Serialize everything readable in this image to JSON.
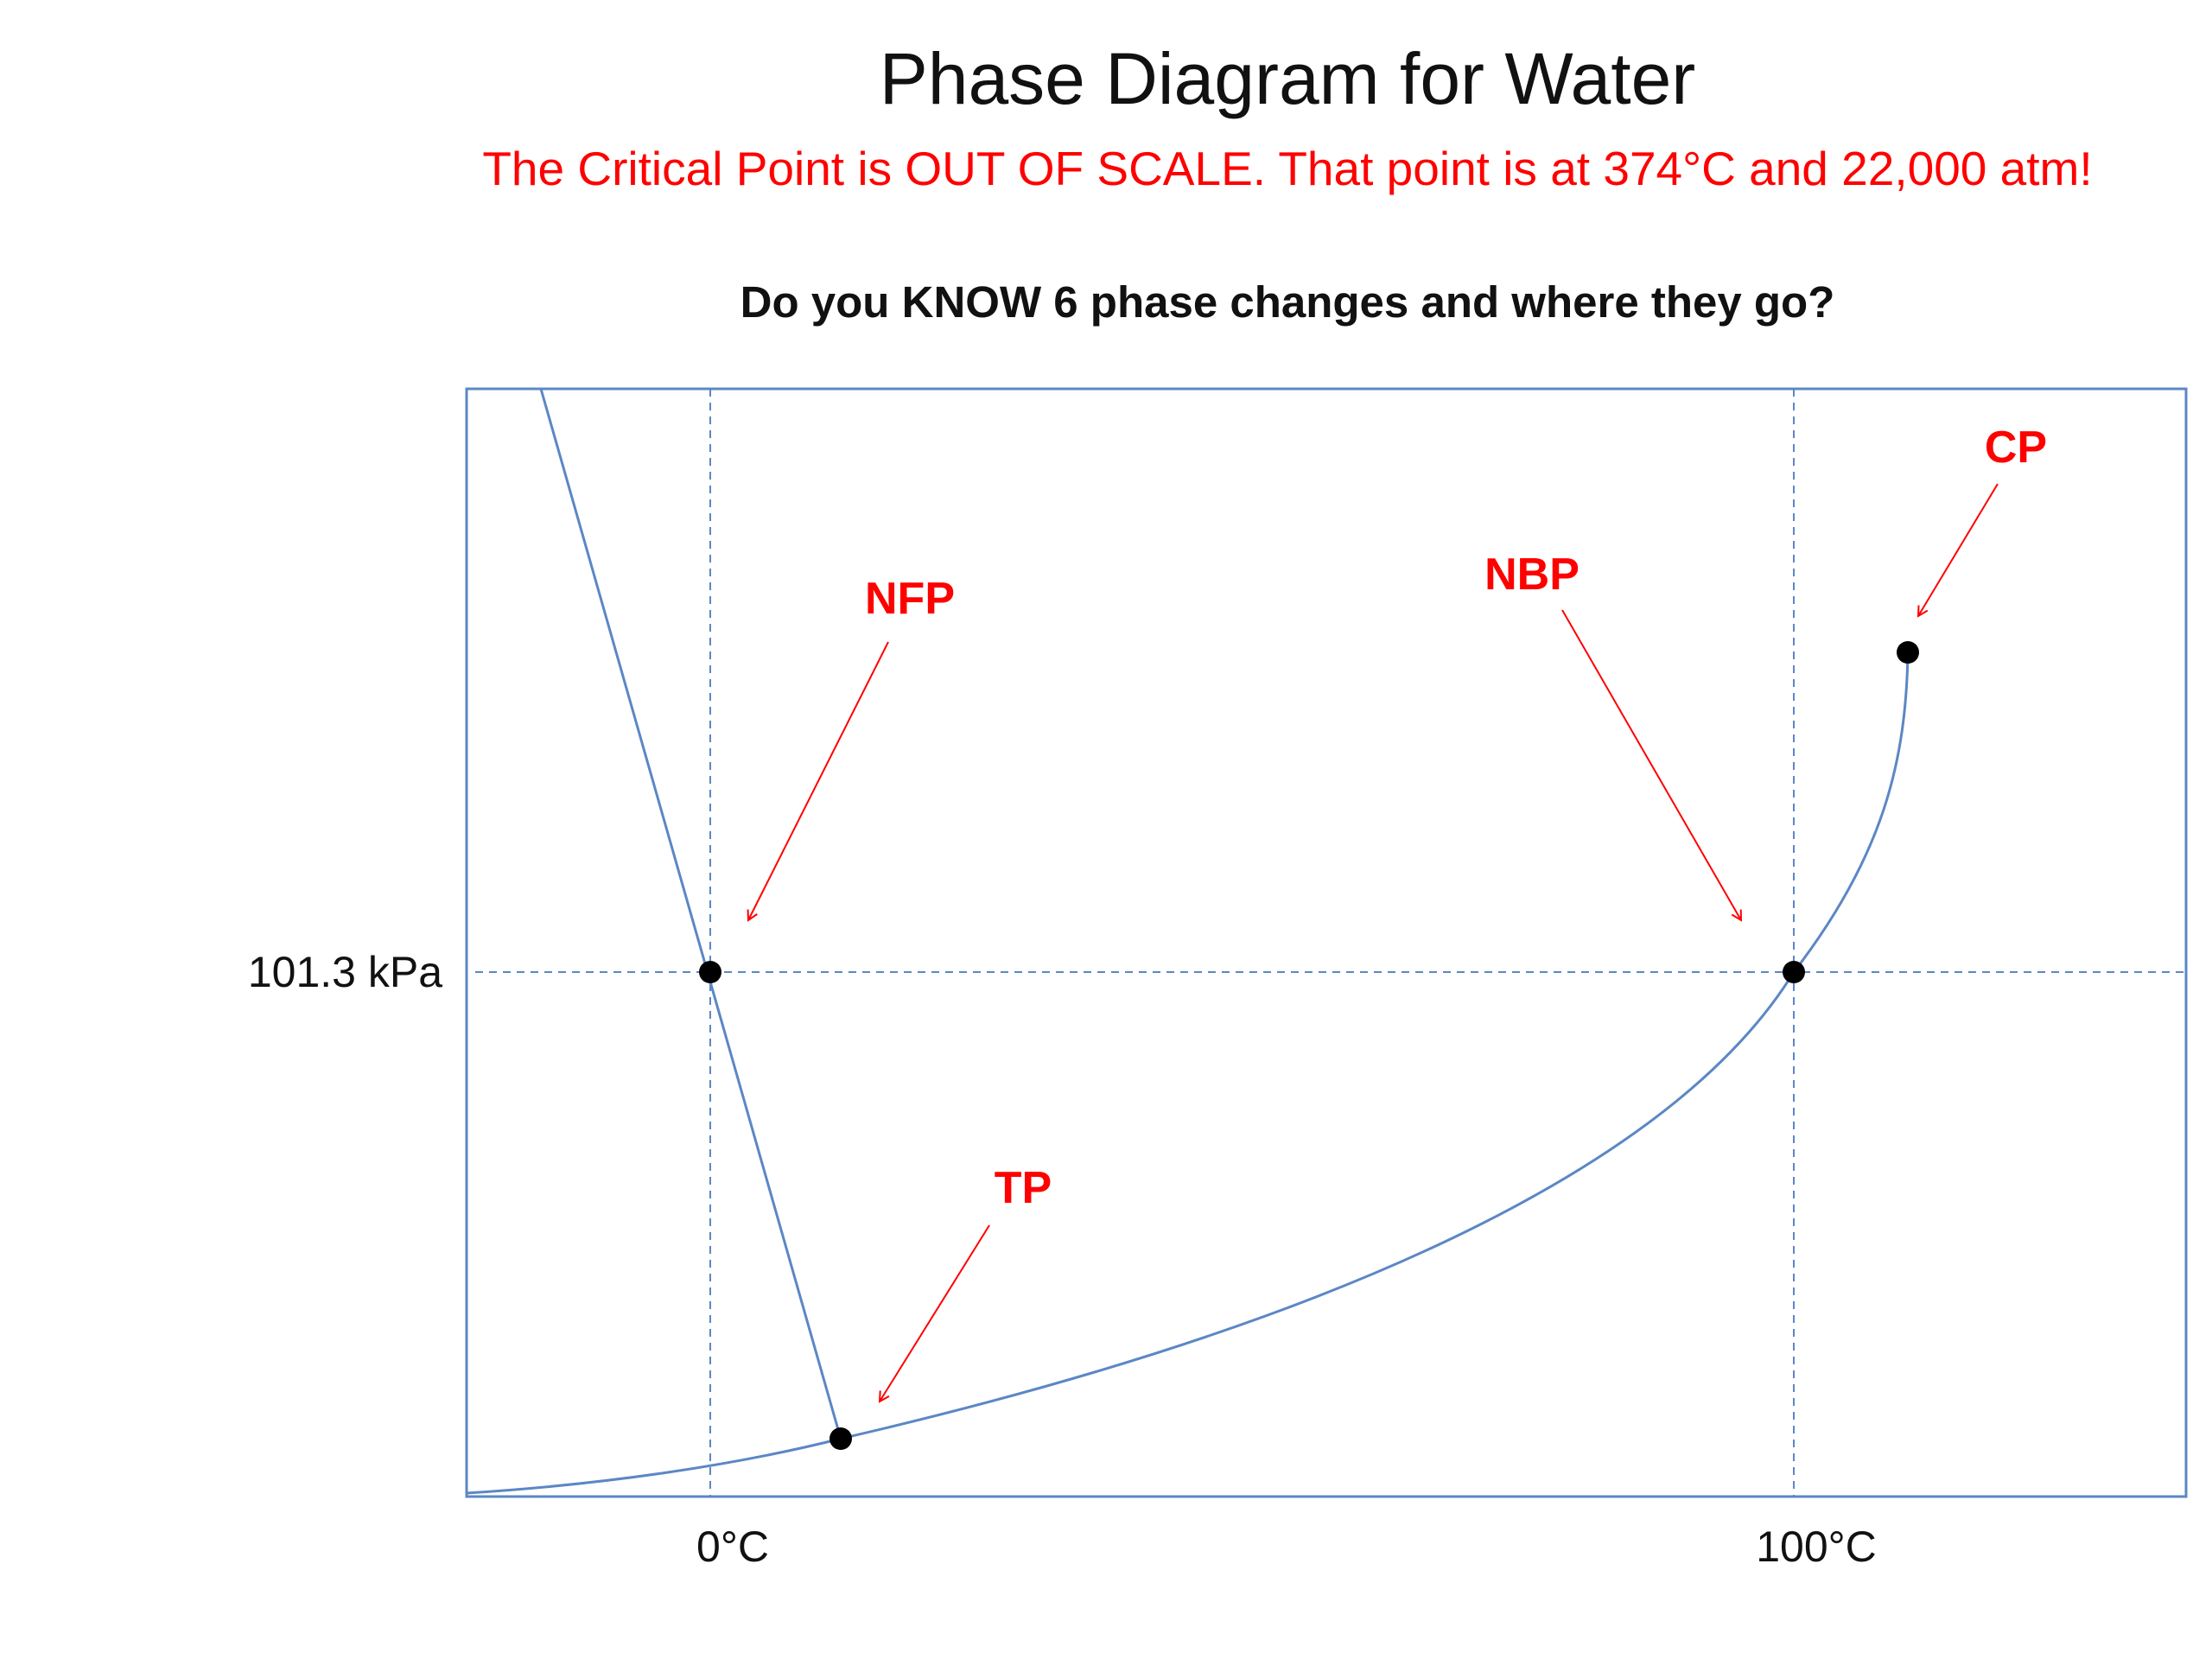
{
  "title": "Phase Diagram for Water",
  "subtitle": "The Critical Point is OUT OF SCALE.  That point is at 374°C and 22,000 atm!",
  "question": "Do you KNOW 6 phase changes and where they go?",
  "axes": {
    "y_reference_label": "101.3 kPa",
    "x_tick_0": "0°C",
    "x_tick_100": "100°C"
  },
  "points": {
    "nfp": "NFP",
    "nbp": "NBP",
    "tp": "TP",
    "cp": "CP"
  },
  "colors": {
    "curve": "#5b87c5",
    "frame": "#5b87c5",
    "gridline": "#5b87c5",
    "annotation": "#ff0000",
    "point": "#000000"
  }
}
